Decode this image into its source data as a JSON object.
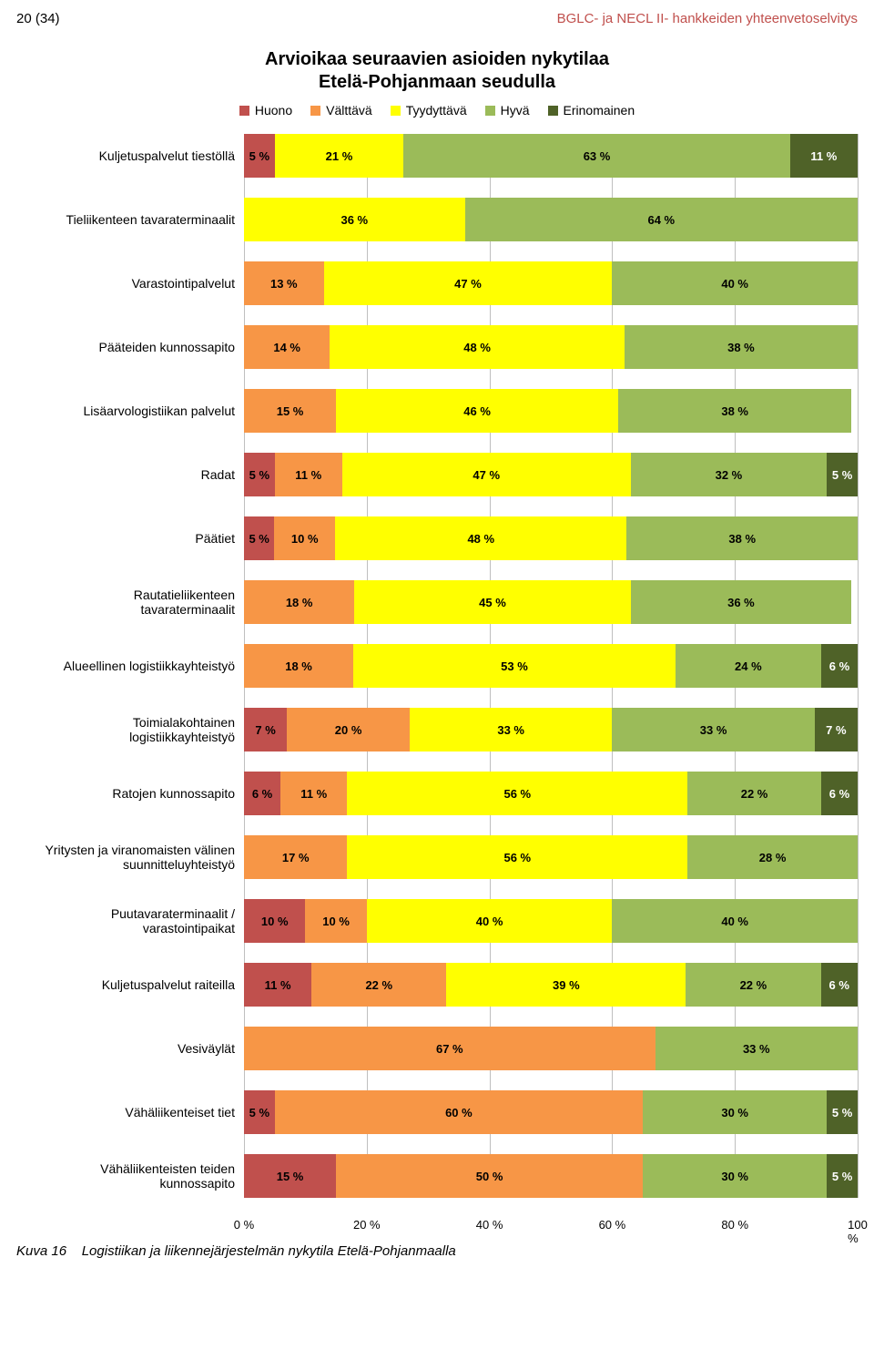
{
  "page_header": {
    "left": "20 (34)",
    "right": "BGLC- ja NECL II- hankkeiden yhteenvetoselvitys",
    "right_color": "#c0504d"
  },
  "chart": {
    "type": "stacked-horizontal-bar",
    "title_line1": "Arvioikaa seuraavien asioiden nykytilaa",
    "title_line2": "Etelä-Pohjanmaan seudulla",
    "title_fontsize": 20,
    "label_fontsize": 14,
    "value_fontsize": 13,
    "background_color": "#ffffff",
    "grid_color": "#bfbfbf",
    "xlim": [
      0,
      100
    ],
    "xtick_step": 20,
    "xticks": [
      "0 %",
      "20 %",
      "40 %",
      "60 %",
      "80 %",
      "100 %"
    ],
    "legend": [
      {
        "name": "Huono",
        "color": "#c0504d"
      },
      {
        "name": "Välttävä",
        "color": "#f79646"
      },
      {
        "name": "Tyydyttävä",
        "color": "#ffff00"
      },
      {
        "name": "Hyvä",
        "color": "#9bbb59"
      },
      {
        "name": "Erinomainen",
        "color": "#4f6228"
      }
    ],
    "rows": [
      {
        "label": "Kuljetuspalvelut tiestöllä",
        "values": [
          5,
          0,
          21,
          63,
          11
        ]
      },
      {
        "label": "Tieliikenteen tavaraterminaalit",
        "values": [
          0,
          0,
          36,
          64,
          0
        ]
      },
      {
        "label": "Varastointipalvelut",
        "values": [
          0,
          13,
          47,
          40,
          0
        ]
      },
      {
        "label": "Pääteiden kunnossapito",
        "values": [
          0,
          14,
          48,
          38,
          0
        ]
      },
      {
        "label": "Lisäarvologistiikan palvelut",
        "values": [
          0,
          15,
          46,
          38,
          0
        ]
      },
      {
        "label": "Radat",
        "values": [
          5,
          11,
          47,
          32,
          5
        ]
      },
      {
        "label": "Päätiet",
        "values": [
          5,
          10,
          48,
          38,
          0
        ]
      },
      {
        "label": "Rautatieliikenteen\ntavaraterminaalit",
        "values": [
          0,
          18,
          45,
          36,
          0
        ]
      },
      {
        "label": "Alueellinen logistiikkayhteistyö",
        "values": [
          0,
          18,
          53,
          24,
          6
        ]
      },
      {
        "label": "Toimialakohtainen\nlogistiikkayhteistyö",
        "values": [
          7,
          20,
          33,
          33,
          7
        ]
      },
      {
        "label": "Ratojen kunnossapito",
        "values": [
          6,
          11,
          56,
          22,
          6
        ]
      },
      {
        "label": "Yritysten ja viranomaisten välinen\nsuunnitteluyhteistyö",
        "values": [
          0,
          17,
          56,
          28,
          0
        ]
      },
      {
        "label": "Puutavaraterminaalit /\nvarastointipaikat",
        "values": [
          10,
          10,
          40,
          40,
          0
        ]
      },
      {
        "label": "Kuljetuspalvelut raiteilla",
        "values": [
          11,
          22,
          39,
          22,
          6
        ]
      },
      {
        "label": "Vesiväylät",
        "values": [
          0,
          67,
          0,
          33,
          0
        ]
      },
      {
        "label": "Vähäliikenteiset tiet",
        "values": [
          5,
          60,
          0,
          30,
          5
        ]
      },
      {
        "label": "Vähäliikenteisten teiden\nkunnossapito",
        "values": [
          15,
          50,
          0,
          30,
          5
        ]
      }
    ],
    "seg_text_colors": {
      "Huono": "#000000",
      "Välttävä": "#000000",
      "Tyydyttävä": "#000000",
      "Hyvä": "#000000",
      "Erinomainen": "#ffffff"
    }
  },
  "caption": {
    "prefix": "Kuva 16",
    "text": "Logistiikan ja liikennejärjestelmän nykytila Etelä-Pohjanmaalla"
  }
}
